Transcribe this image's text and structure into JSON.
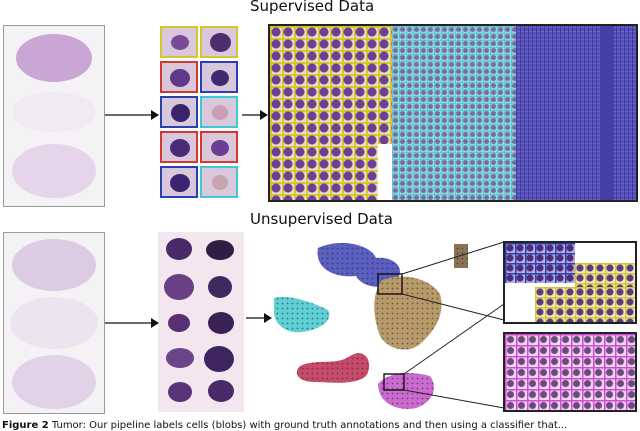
{
  "titles": {
    "supervised": "Supervised Data",
    "unsupervised": "Unsupervised Data"
  },
  "caption": {
    "label": "Figure 2",
    "text": "Tumor: Our pipeline labels cells (blobs) with ground truth annotations and then using a classifier that..."
  },
  "colors": {
    "stain_dark": "#6b3f8f",
    "stain_light": "#c9a9d6",
    "box_yellow": "#d6c62e",
    "box_red": "#d23a2f",
    "box_blue": "#2c3fb0",
    "box_cyan": "#3ec7d4",
    "cluster_blue": "#5a5fc0",
    "cluster_cyan": "#5fd0d6",
    "cluster_tan": "#b89a6a",
    "cluster_red": "#c84a6a",
    "cluster_magenta": "#cc6ad0",
    "grid_dark_blue": "#4a3ea8"
  }
}
